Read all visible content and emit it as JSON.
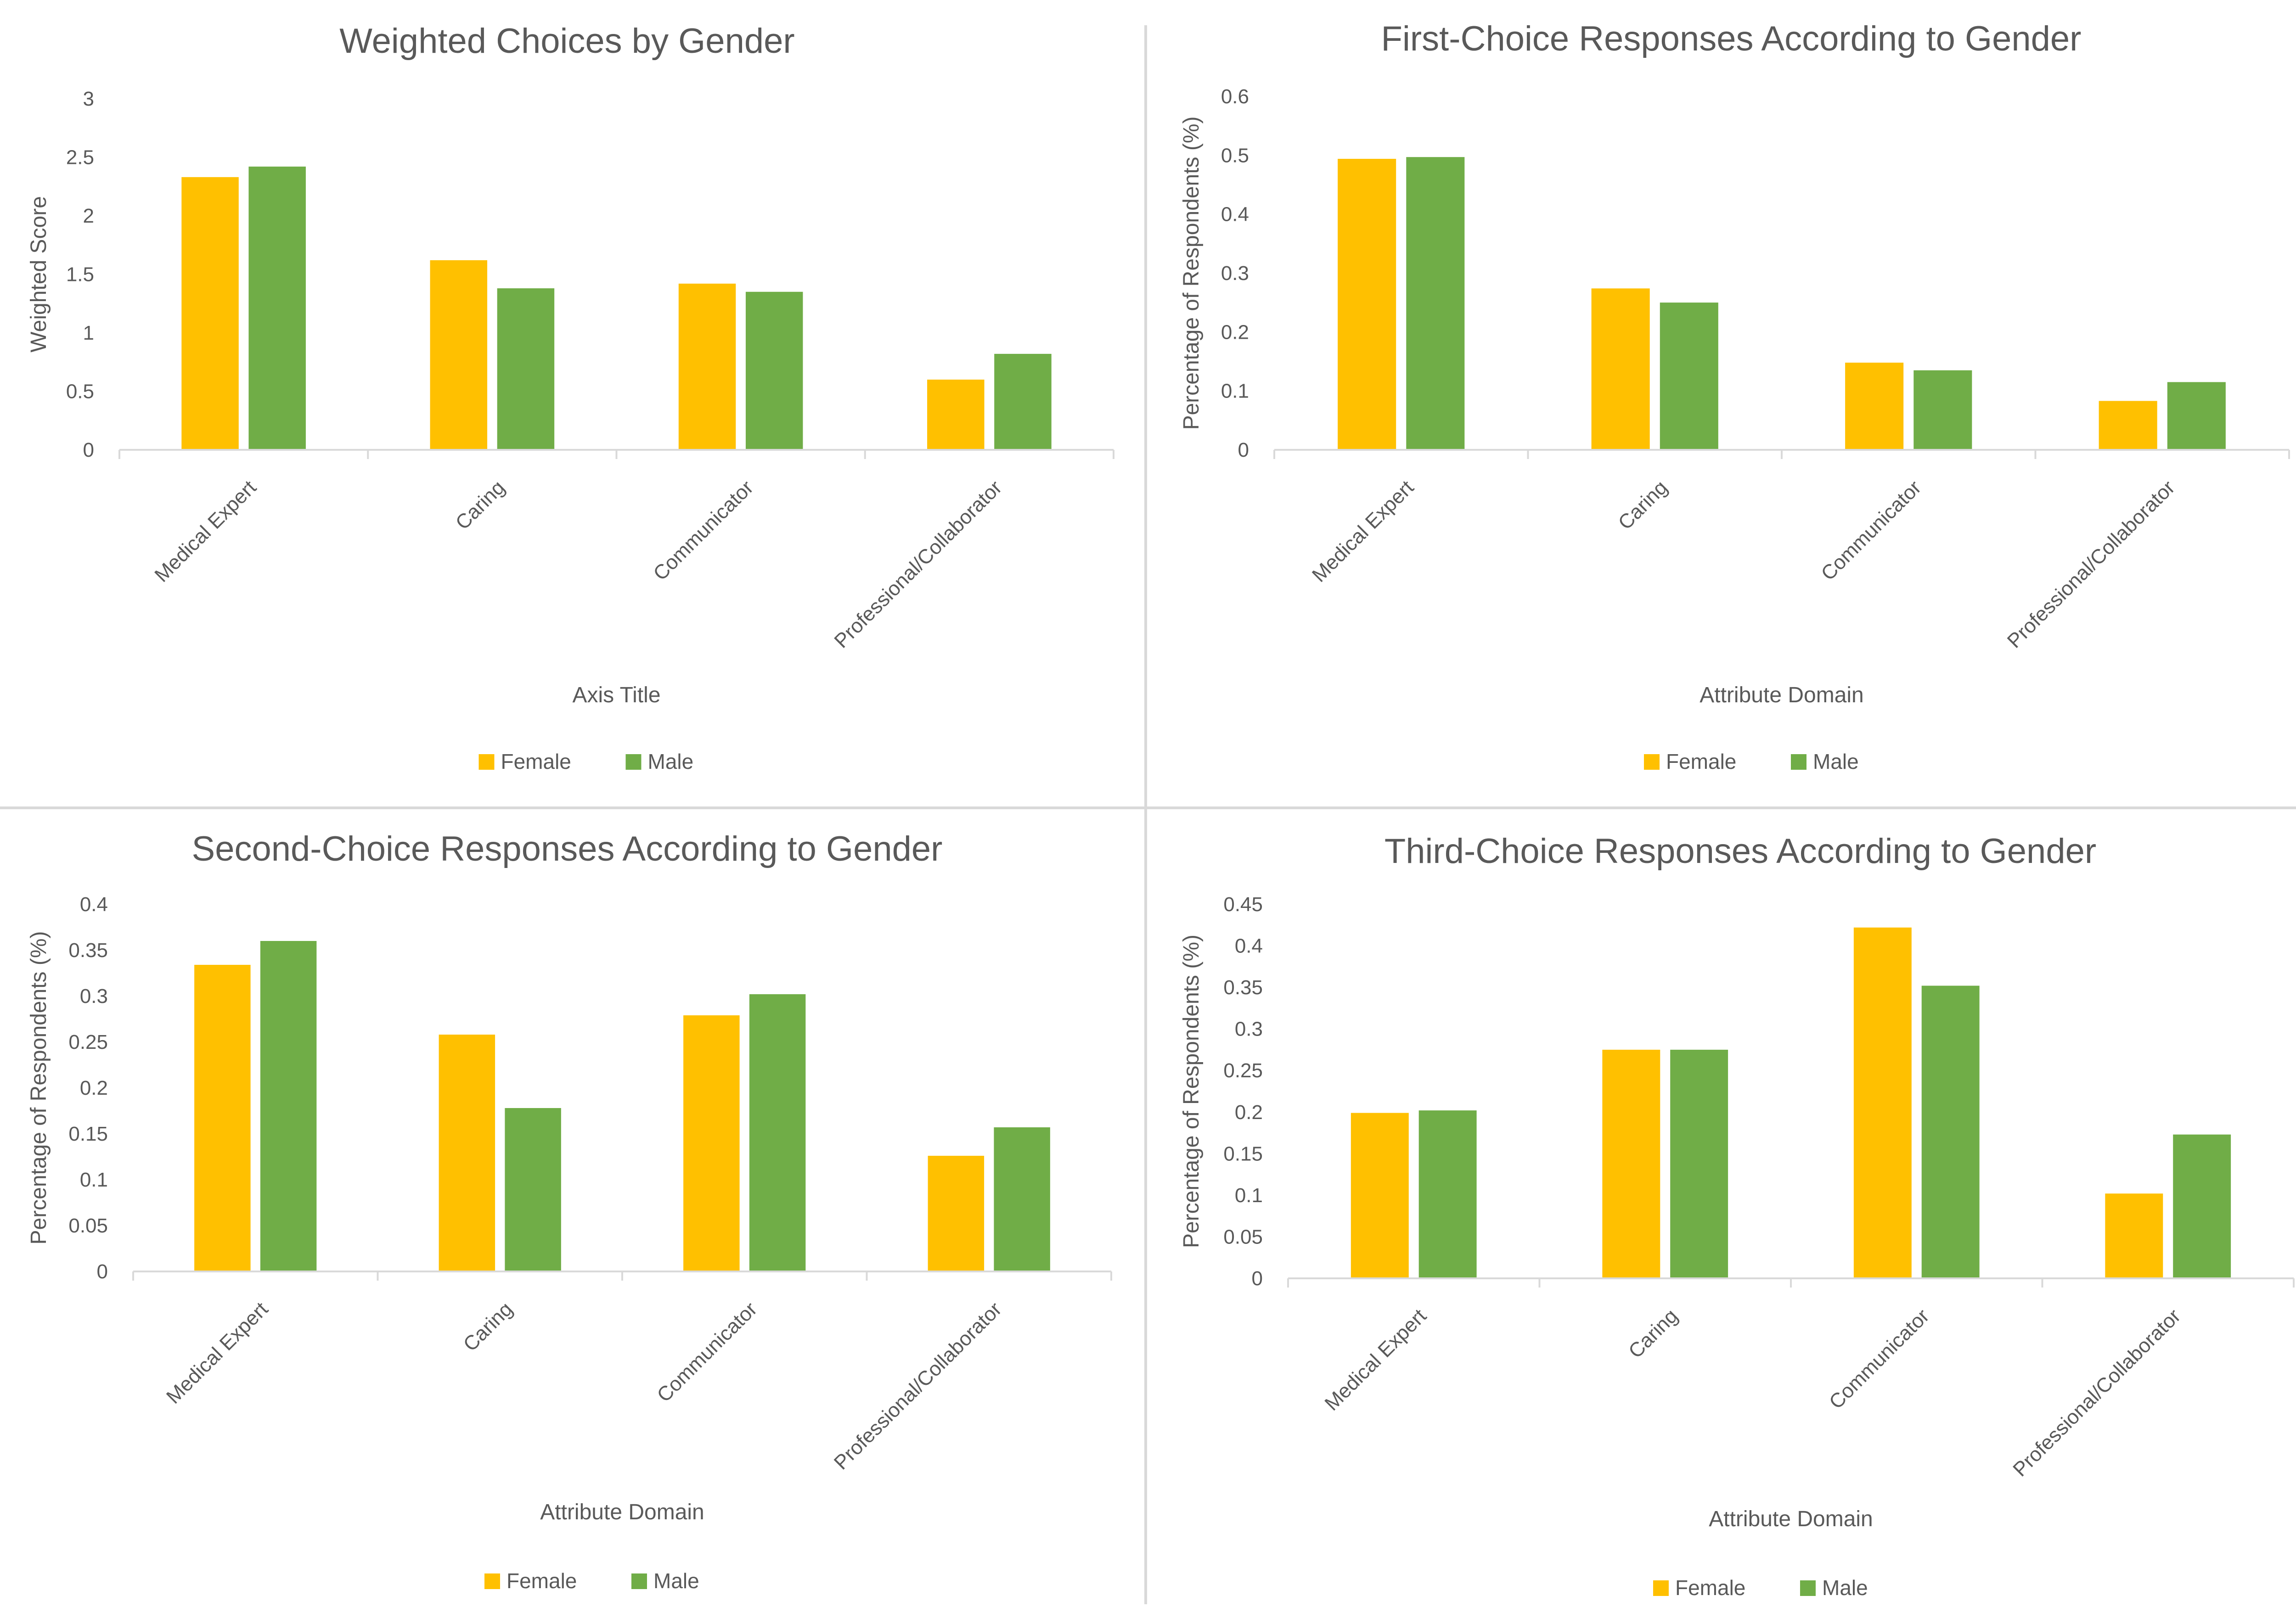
{
  "colors": {
    "female": "#FFC000",
    "male": "#70AD47",
    "axis": "#D9D9D9",
    "text": "#595959",
    "divider": "#D9D9D9"
  },
  "chart_data": [
    {
      "type": "bar",
      "title": "Weighted Choices by Gender",
      "xlabel": "Axis Title",
      "ylabel": "Weighted Score",
      "ylim": [
        0,
        3
      ],
      "yticks": [
        "0",
        "0.5",
        "1",
        "1.5",
        "2",
        "2.5",
        "3"
      ],
      "categories": [
        "Medical Expert",
        "Caring",
        "Communicator",
        "Professional/Collaborator"
      ],
      "series": [
        {
          "name": "Female",
          "values": [
            2.33,
            1.62,
            1.42,
            0.6
          ]
        },
        {
          "name": "Male",
          "values": [
            2.42,
            1.38,
            1.35,
            0.82
          ]
        }
      ],
      "legend": "bottom",
      "grid": false
    },
    {
      "type": "bar",
      "title": "First-Choice Responses According to Gender",
      "xlabel": "Attribute Domain",
      "ylabel": "Percentage of Respondents (%)",
      "ylim": [
        0,
        0.6
      ],
      "yticks": [
        "0",
        "0.1",
        "0.2",
        "0.3",
        "0.4",
        "0.5",
        "0.6"
      ],
      "categories": [
        "Medical Expert",
        "Caring",
        "Communicator",
        "Professional/Collaborator"
      ],
      "series": [
        {
          "name": "Female",
          "values": [
            0.494,
            0.274,
            0.148,
            0.083
          ]
        },
        {
          "name": "Male",
          "values": [
            0.497,
            0.25,
            0.135,
            0.115
          ]
        }
      ],
      "legend": "bottom",
      "grid": false
    },
    {
      "type": "bar",
      "title": "Second-Choice Responses According to Gender",
      "xlabel": "Attribute Domain",
      "ylabel": "Percentage of Respondents (%)",
      "ylim": [
        0,
        0.4
      ],
      "yticks": [
        "0",
        "0.05",
        "0.1",
        "0.15",
        "0.2",
        "0.25",
        "0.3",
        "0.35",
        "0.4"
      ],
      "categories": [
        "Medical Expert",
        "Caring",
        "Communicator",
        "Professional/Collaborator"
      ],
      "series": [
        {
          "name": "Female",
          "values": [
            0.334,
            0.258,
            0.279,
            0.126
          ]
        },
        {
          "name": "Male",
          "values": [
            0.36,
            0.178,
            0.302,
            0.157
          ]
        }
      ],
      "legend": "bottom",
      "grid": false
    },
    {
      "type": "bar",
      "title": "Third-Choice Responses According to Gender",
      "xlabel": "Attribute Domain",
      "ylabel": "Percentage of Respondents (%)",
      "ylim": [
        0,
        0.45
      ],
      "yticks": [
        "0",
        "0.05",
        "0.1",
        "0.15",
        "0.2",
        "0.25",
        "0.3",
        "0.35",
        "0.4",
        "0.45"
      ],
      "categories": [
        "Medical Expert",
        "Caring",
        "Communicator",
        "Professional/Collaborator"
      ],
      "series": [
        {
          "name": "Female",
          "values": [
            0.199,
            0.275,
            0.422,
            0.102
          ]
        },
        {
          "name": "Male",
          "values": [
            0.202,
            0.275,
            0.352,
            0.173
          ]
        }
      ],
      "legend": "bottom",
      "grid": false
    }
  ]
}
